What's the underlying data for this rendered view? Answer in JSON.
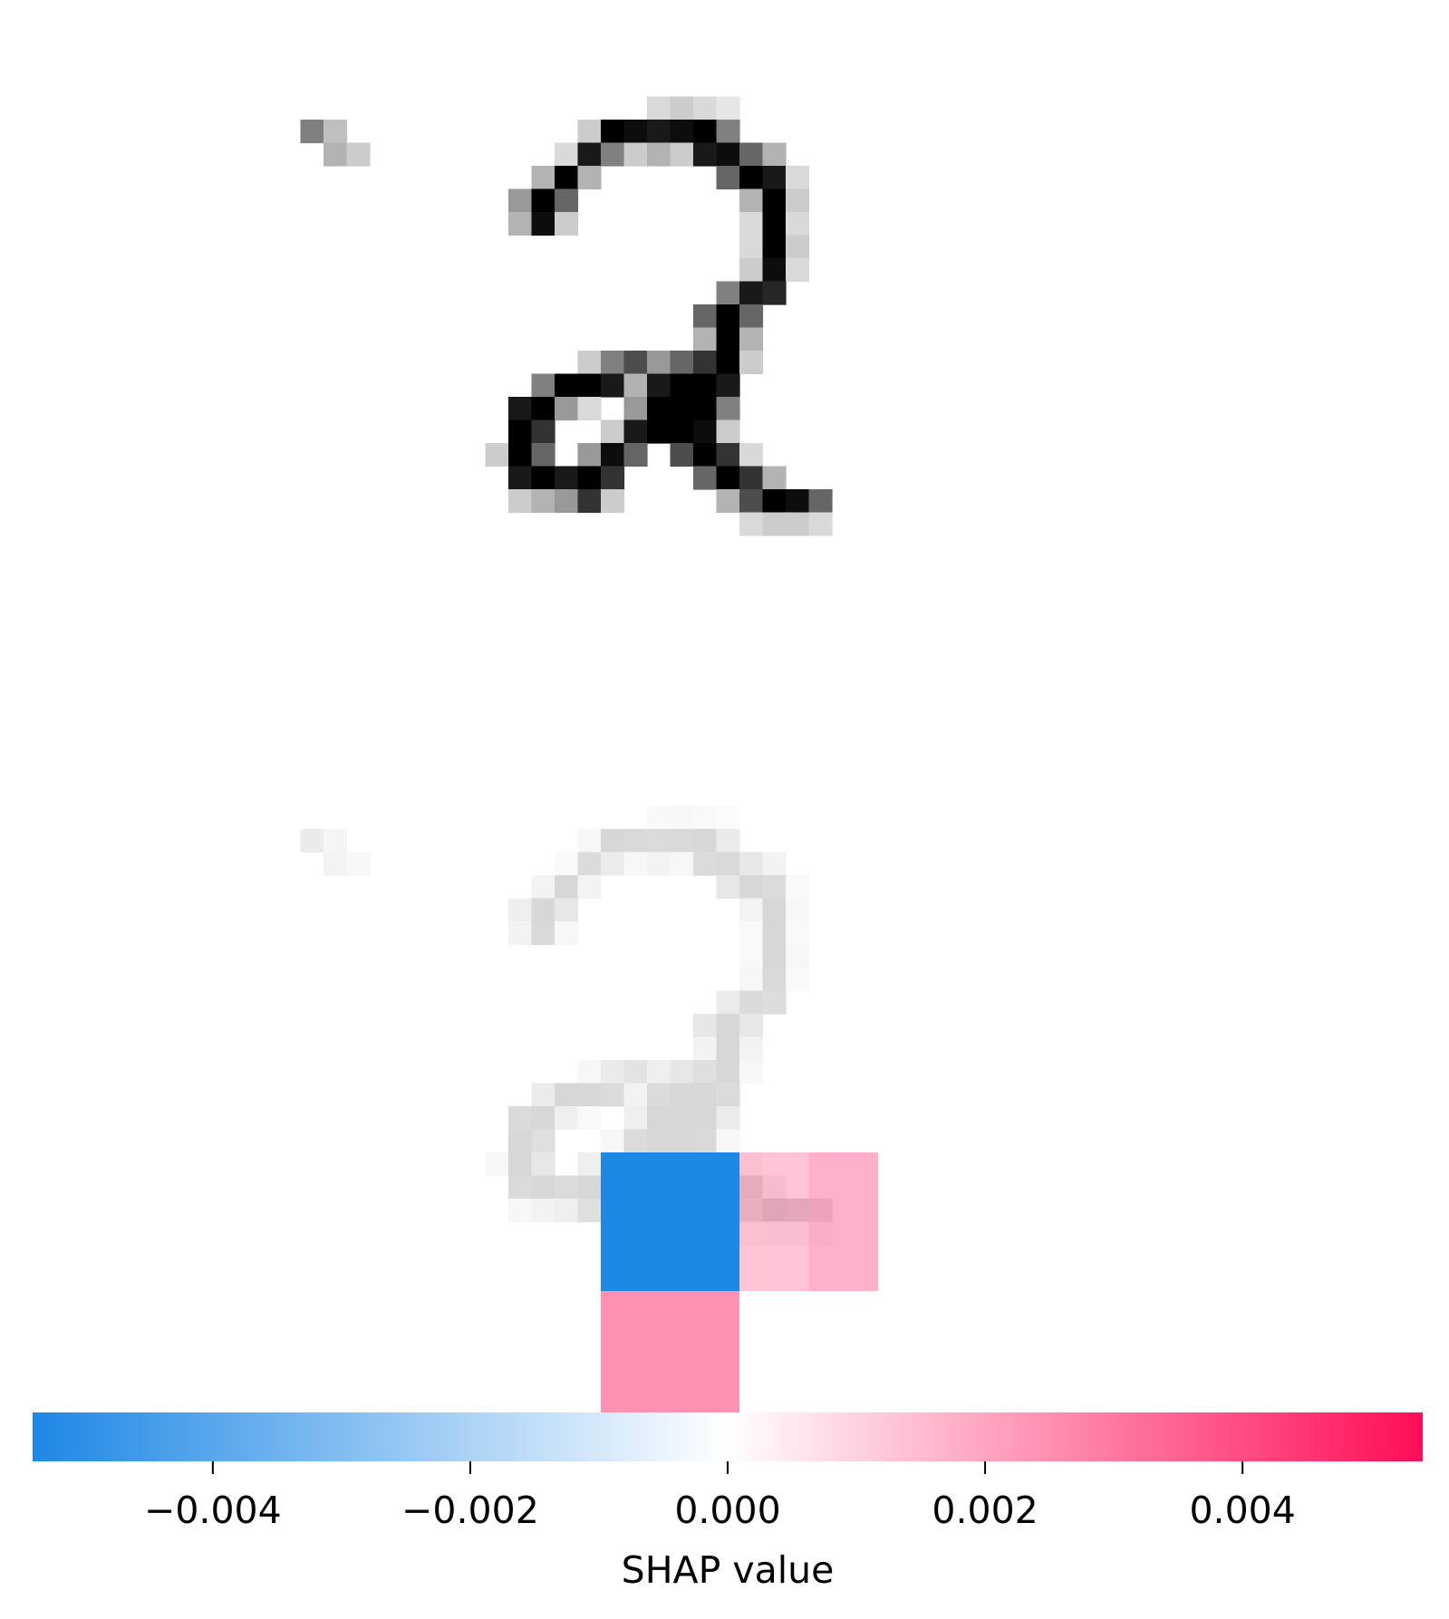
{
  "chart_data": [
    {
      "type": "heatmap",
      "panel": "input-image",
      "rows": 28,
      "cols": 28,
      "colormap": "gray_r",
      "vmin": 0,
      "vmax": 1,
      "cells": [
        [
          6,
          13,
          0.5
        ],
        [
          6,
          14,
          0.25
        ],
        [
          7,
          14,
          0.3
        ],
        [
          7,
          15,
          0.2
        ],
        [
          5,
          28,
          0.15
        ],
        [
          5,
          29,
          0.2
        ],
        [
          5,
          30,
          0.15
        ],
        [
          5,
          31,
          0.1
        ],
        [
          6,
          25,
          0.2
        ],
        [
          6,
          26,
          1
        ],
        [
          6,
          27,
          0.95
        ],
        [
          6,
          28,
          0.9
        ],
        [
          6,
          29,
          0.95
        ],
        [
          6,
          30,
          1
        ],
        [
          6,
          31,
          0.5
        ],
        [
          7,
          24,
          0.15
        ],
        [
          7,
          25,
          0.9
        ],
        [
          7,
          26,
          0.5
        ],
        [
          7,
          27,
          0.2
        ],
        [
          7,
          28,
          0.3
        ],
        [
          7,
          29,
          0.2
        ],
        [
          7,
          30,
          0.9
        ],
        [
          7,
          31,
          0.95
        ],
        [
          7,
          32,
          0.6
        ],
        [
          7,
          33,
          0.3
        ],
        [
          8,
          23,
          0.3
        ],
        [
          8,
          24,
          1
        ],
        [
          8,
          25,
          0.3
        ],
        [
          8,
          31,
          0.6
        ],
        [
          8,
          32,
          1
        ],
        [
          8,
          33,
          0.9
        ],
        [
          8,
          34,
          0.15
        ],
        [
          9,
          22,
          0.4
        ],
        [
          9,
          23,
          1
        ],
        [
          9,
          24,
          0.6
        ],
        [
          9,
          32,
          0.3
        ],
        [
          9,
          33,
          1
        ],
        [
          9,
          34,
          0.2
        ],
        [
          10,
          22,
          0.3
        ],
        [
          10,
          23,
          0.95
        ],
        [
          10,
          24,
          0.2
        ],
        [
          10,
          32,
          0.15
        ],
        [
          10,
          33,
          1
        ],
        [
          10,
          34,
          0.15
        ],
        [
          11,
          32,
          0.15
        ],
        [
          11,
          33,
          1
        ],
        [
          11,
          34,
          0.2
        ],
        [
          12,
          32,
          0.2
        ],
        [
          12,
          33,
          0.95
        ],
        [
          12,
          34,
          0.15
        ],
        [
          13,
          31,
          0.5
        ],
        [
          13,
          32,
          0.9
        ],
        [
          13,
          33,
          0.85
        ],
        [
          14,
          30,
          0.6
        ],
        [
          14,
          31,
          1
        ],
        [
          14,
          32,
          0.6
        ],
        [
          15,
          30,
          0.3
        ],
        [
          15,
          31,
          1
        ],
        [
          15,
          32,
          0.3
        ],
        [
          16,
          25,
          0.2
        ],
        [
          16,
          26,
          0.5
        ],
        [
          16,
          27,
          0.7
        ],
        [
          16,
          28,
          0.4
        ],
        [
          16,
          29,
          0.6
        ],
        [
          16,
          30,
          0.8
        ],
        [
          16,
          31,
          1
        ],
        [
          16,
          32,
          0.2
        ],
        [
          17,
          23,
          0.5
        ],
        [
          17,
          24,
          1
        ],
        [
          17,
          25,
          1
        ],
        [
          17,
          26,
          0.9
        ],
        [
          17,
          27,
          0.3
        ],
        [
          17,
          28,
          0.9
        ],
        [
          17,
          29,
          1
        ],
        [
          17,
          30,
          1
        ],
        [
          17,
          31,
          0.9
        ],
        [
          18,
          22,
          0.9
        ],
        [
          18,
          23,
          1
        ],
        [
          18,
          24,
          0.4
        ],
        [
          18,
          25,
          0.15
        ],
        [
          18,
          27,
          0.4
        ],
        [
          18,
          28,
          1
        ],
        [
          18,
          29,
          1
        ],
        [
          18,
          30,
          1
        ],
        [
          18,
          31,
          0.5
        ],
        [
          19,
          22,
          1
        ],
        [
          19,
          23,
          0.8
        ],
        [
          19,
          26,
          0.2
        ],
        [
          19,
          27,
          0.9
        ],
        [
          19,
          28,
          1
        ],
        [
          19,
          29,
          1
        ],
        [
          19,
          30,
          0.95
        ],
        [
          19,
          31,
          0.2
        ],
        [
          20,
          21,
          0.2
        ],
        [
          20,
          22,
          1
        ],
        [
          20,
          23,
          0.6
        ],
        [
          20,
          25,
          0.4
        ],
        [
          20,
          26,
          0.95
        ],
        [
          20,
          27,
          0.6
        ],
        [
          20,
          29,
          0.7
        ],
        [
          20,
          30,
          1
        ],
        [
          20,
          31,
          0.8
        ],
        [
          20,
          32,
          0.15
        ],
        [
          21,
          22,
          0.9
        ],
        [
          21,
          23,
          1
        ],
        [
          21,
          24,
          0.9
        ],
        [
          21,
          25,
          1
        ],
        [
          21,
          26,
          0.8
        ],
        [
          21,
          30,
          0.6
        ],
        [
          21,
          31,
          1
        ],
        [
          21,
          32,
          0.8
        ],
        [
          21,
          33,
          0.3
        ],
        [
          22,
          22,
          0.2
        ],
        [
          22,
          23,
          0.3
        ],
        [
          22,
          24,
          0.4
        ],
        [
          22,
          25,
          0.8
        ],
        [
          22,
          26,
          0.2
        ],
        [
          22,
          31,
          0.3
        ],
        [
          22,
          32,
          0.7
        ],
        [
          22,
          33,
          1
        ],
        [
          22,
          34,
          0.95
        ],
        [
          22,
          35,
          0.6
        ],
        [
          23,
          32,
          0.15
        ],
        [
          23,
          33,
          0.2
        ],
        [
          23,
          34,
          0.2
        ],
        [
          23,
          35,
          0.15
        ]
      ]
    },
    {
      "type": "heatmap",
      "panel": "shap-overlay",
      "rows": 28,
      "cols": 28,
      "colormap": "shap_red_transparent_blue",
      "vmin": -0.0054,
      "vmax": 0.0054,
      "shap_blocks": [
        {
          "row_start": 20,
          "row_end": 26,
          "col_start": 26,
          "col_end": 32,
          "value": -0.0054
        },
        {
          "row_start": 20,
          "row_end": 26,
          "col_start": 32,
          "col_end": 35,
          "value": 0.0018
        },
        {
          "row_start": 20,
          "row_end": 26,
          "col_start": 35,
          "col_end": 38,
          "value": 0.0024
        },
        {
          "row_start": 26,
          "row_end": 32,
          "col_start": 26,
          "col_end": 32,
          "value": 0.0034
        }
      ],
      "colorbar": {
        "label": "SHAP value",
        "ticks": [
          -0.004,
          -0.002,
          0.0,
          0.002,
          0.004
        ],
        "tick_labels": [
          "−0.004",
          "−0.002",
          "0.000",
          "0.002",
          "0.004"
        ],
        "range": [
          -0.0054,
          0.0054
        ],
        "negative_color": "#1e88e5",
        "positive_color": "#ff0d57"
      }
    }
  ]
}
